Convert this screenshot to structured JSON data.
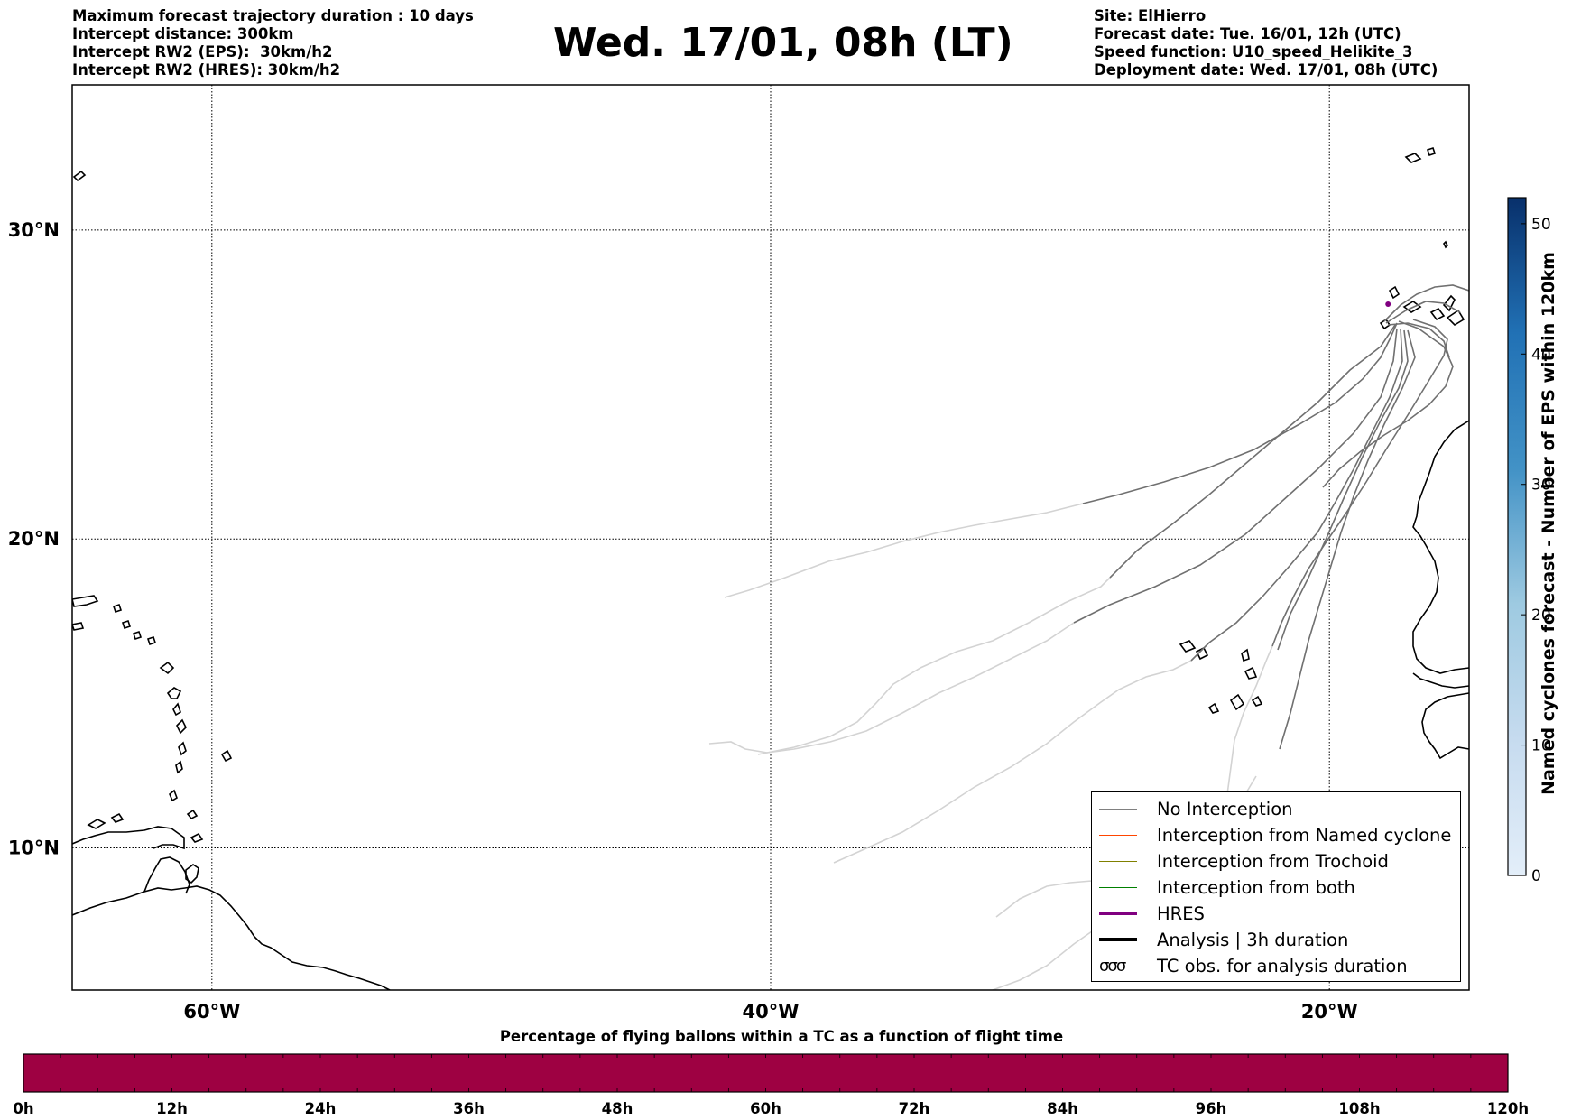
{
  "header": {
    "left_lines": [
      "Maximum forecast trajectory duration : 10 days",
      "Intercept distance: 300km",
      "Intercept RW2 (EPS):  30km/h2",
      "Intercept RW2 (HRES): 30km/h2"
    ],
    "title": "Wed. 17/01, 08h (LT)",
    "right_lines": [
      "Site: ElHierro",
      "Forecast date: Tue. 16/01, 12h (UTC)",
      "Speed function: U10_speed_Helikite_3",
      "Deployment date: Wed. 17/01, 08h (UTC)"
    ]
  },
  "map": {
    "lon_range": [
      -65,
      -15
    ],
    "lat_range": [
      5.4,
      34.7
    ],
    "lat_ticks": [
      {
        "value": 30,
        "label": "30°N"
      },
      {
        "value": 20,
        "label": "20°N"
      },
      {
        "value": 10,
        "label": "10°N"
      }
    ],
    "lon_ticks": [
      {
        "value": -60,
        "label": "60°W"
      },
      {
        "value": -40,
        "label": "40°W"
      },
      {
        "value": -20,
        "label": "20°W"
      }
    ],
    "site_marker": {
      "lon": -17.9,
      "lat": 27.6,
      "color": "#800080"
    }
  },
  "legend": {
    "entries": [
      {
        "label": "No Interception",
        "color": "#808080",
        "icon": "thin-line"
      },
      {
        "label": "Interception from Named cyclone",
        "color": "#ff4500",
        "icon": "thin-line"
      },
      {
        "label": "Interception from Trochoid",
        "color": "#808000",
        "icon": "thin-line"
      },
      {
        "label": "Interception from both",
        "color": "#008000",
        "icon": "thin-line"
      },
      {
        "label": "HRES",
        "color": "#800080",
        "icon": "thick-line"
      },
      {
        "label": "Analysis | 3h duration",
        "color": "#000000",
        "icon": "thick-line"
      },
      {
        "label": "TC obs. for analysis duration",
        "color": "#000000",
        "icon": "cyclone-symbols"
      }
    ]
  },
  "colorbar_right": {
    "title": "Named cyclones forecast - Number of EPS within 120km",
    "ticks": [
      "0",
      "10",
      "20",
      "30",
      "40",
      "50"
    ],
    "max": 52,
    "color_low": "#e3eef9",
    "color_high": "#08306b"
  },
  "colorbar_bottom": {
    "title": "Percentage of flying ballons within a TC as a function of flight time",
    "ticks": [
      "0h",
      "12h",
      "24h",
      "36h",
      "48h",
      "60h",
      "72h",
      "84h",
      "96h",
      "108h",
      "120h"
    ],
    "fill_percent": 0,
    "color": "#9e0142"
  }
}
